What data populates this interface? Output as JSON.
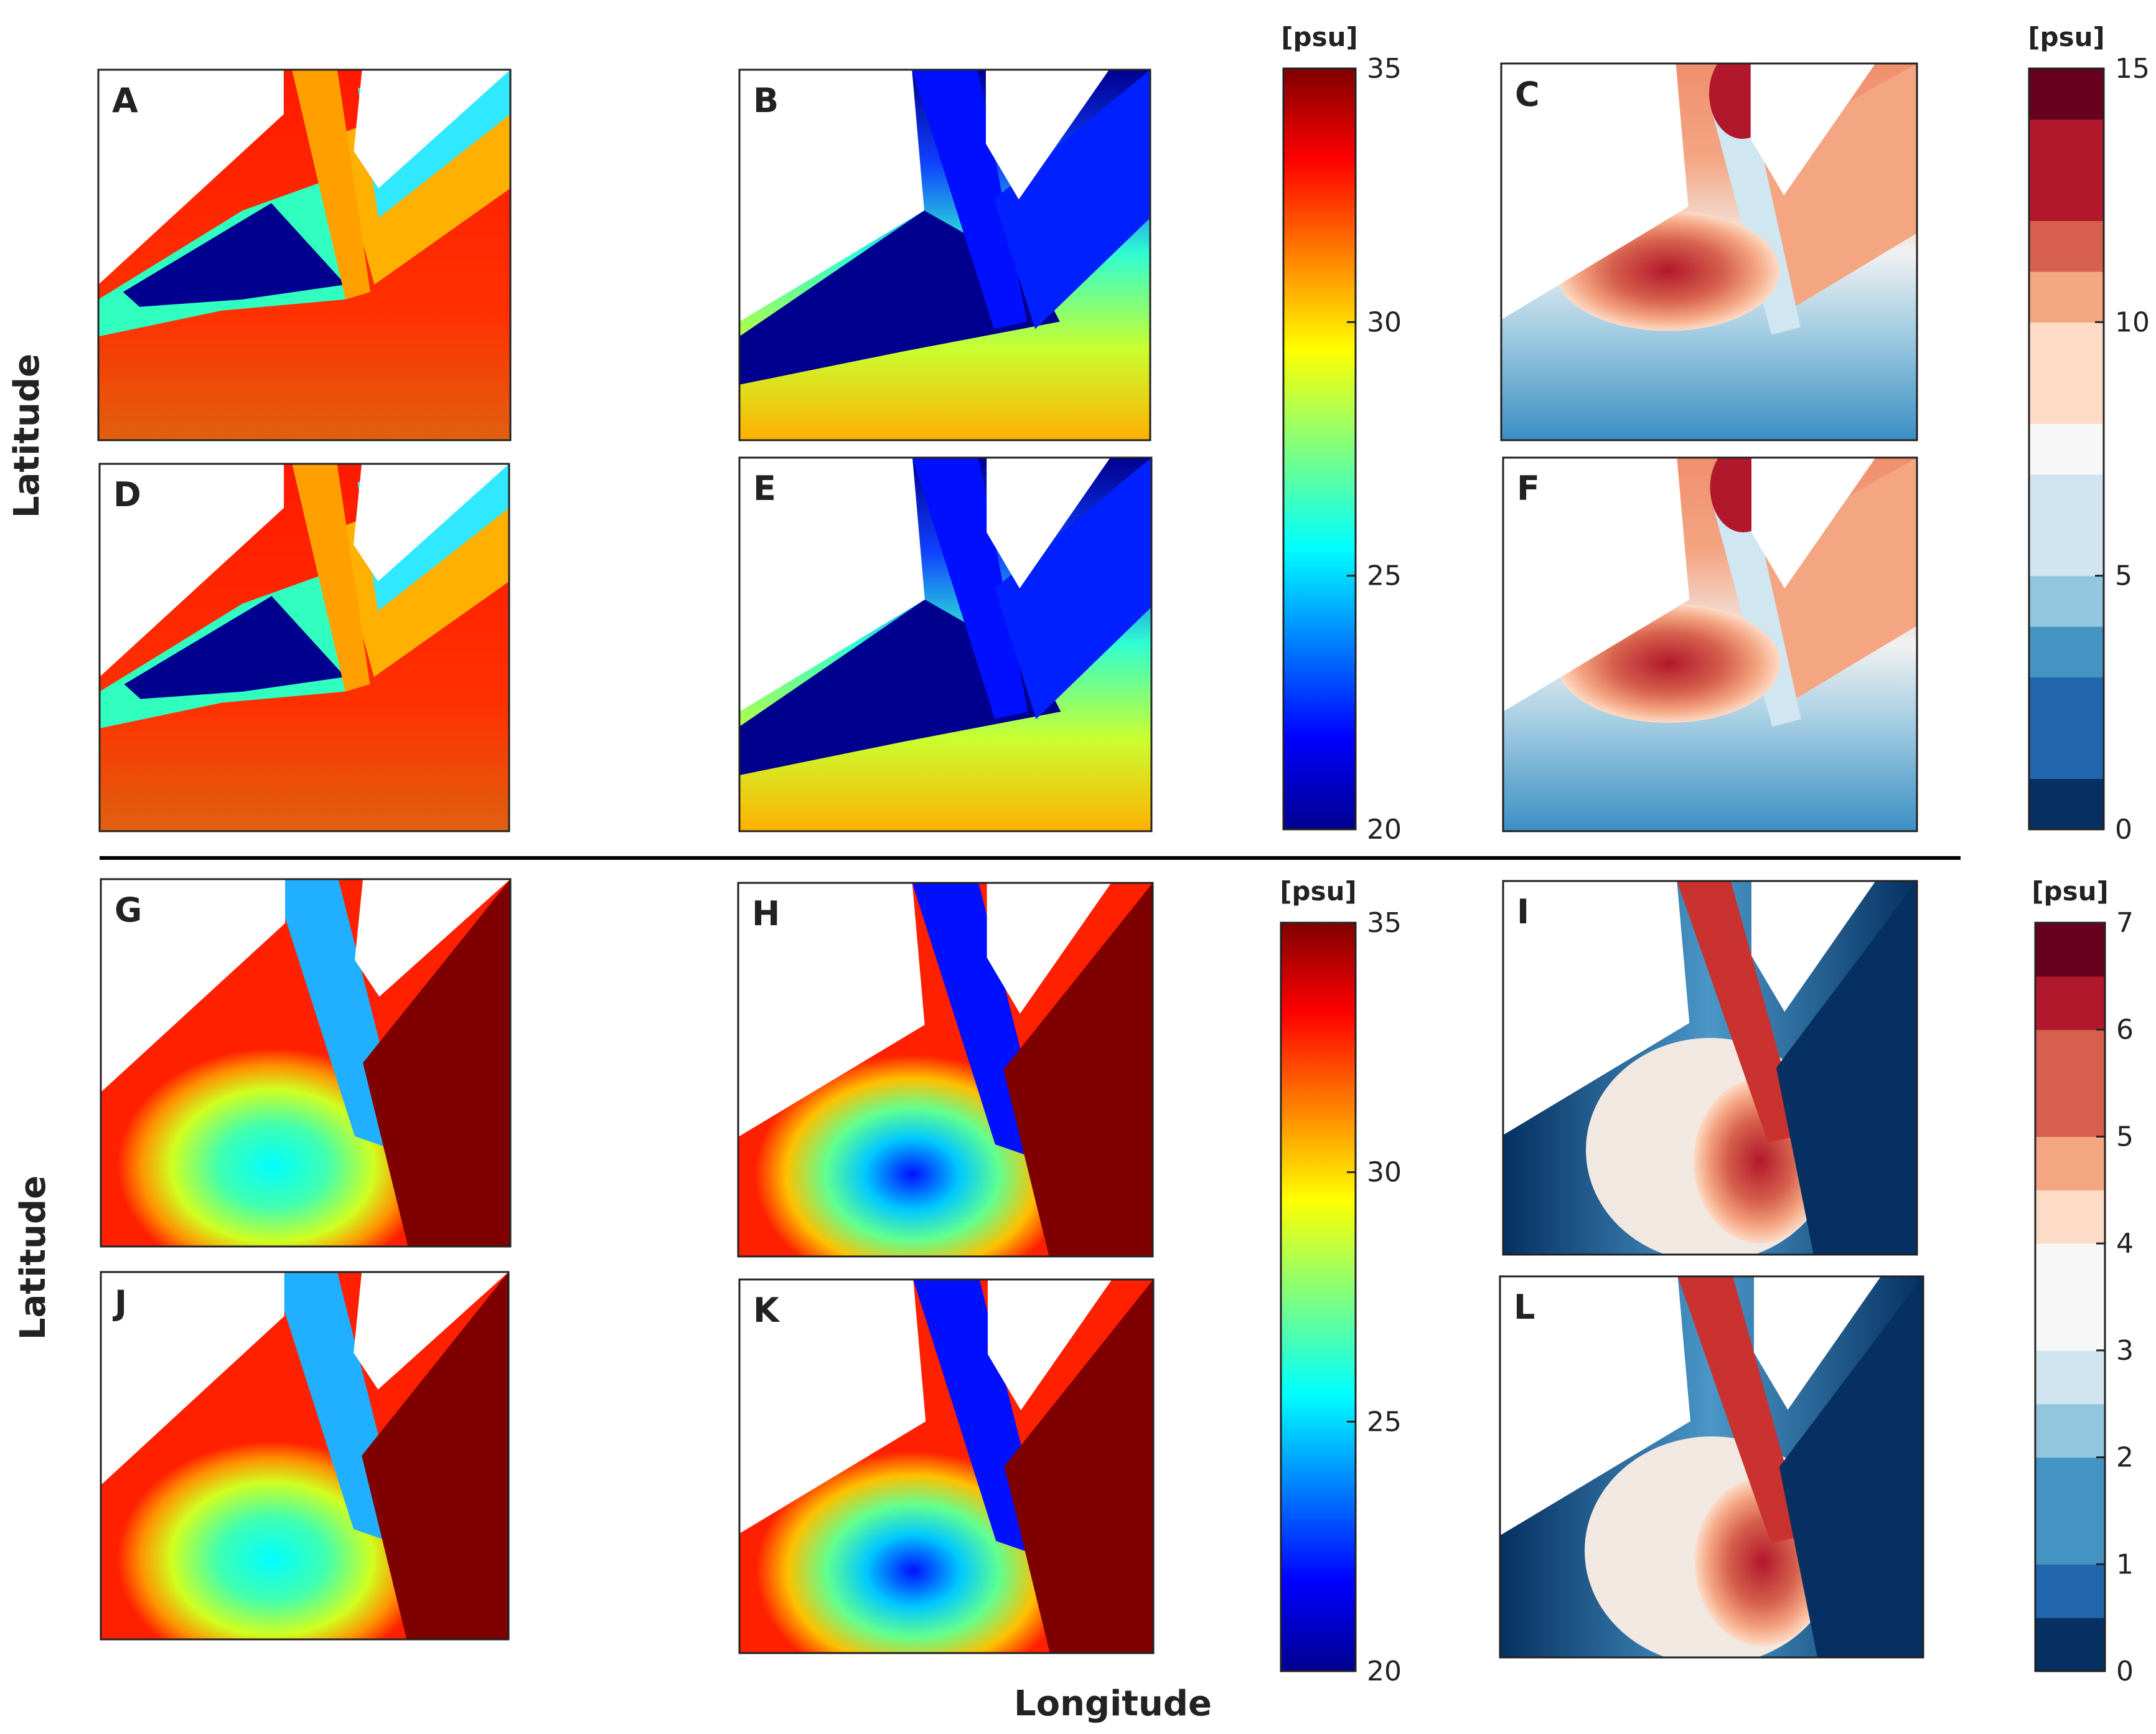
{
  "figure": {
    "ylabel": "Latitude",
    "xlabel": "Longitude",
    "panels": [
      "A",
      "B",
      "C",
      "D",
      "E",
      "F",
      "G",
      "H",
      "I",
      "J",
      "K",
      "L"
    ]
  },
  "colors": {
    "jet": [
      "#00008f",
      "#0000ff",
      "#00ffff",
      "#7fff7f",
      "#ffff00",
      "#ff0000",
      "#7f0000"
    ],
    "rdbu": [
      "#053061",
      "#2166ac",
      "#4393c3",
      "#92c5de",
      "#d1e5f0",
      "#f7f7f7",
      "#fddbc7",
      "#f4a582",
      "#d6604d",
      "#b2182b",
      "#67001f"
    ],
    "land": "#ffffff",
    "divider": "#000000"
  },
  "chart_data": [
    {
      "type": "heatmap",
      "title": "",
      "colorbar": {
        "label": "[psu]",
        "min": 20,
        "max": 35,
        "ticks": [
          "20",
          "25",
          "30",
          "35"
        ],
        "colormap": "jet",
        "orientation": "vertical"
      },
      "panels": [
        "A",
        "B",
        "D",
        "E"
      ],
      "xlabel": "Longitude",
      "ylabel": "Latitude"
    },
    {
      "type": "heatmap",
      "title": "",
      "colorbar": {
        "label": "[psu]",
        "min": 0,
        "max": 15,
        "ticks": [
          "0",
          "5",
          "10",
          "15"
        ],
        "levels": 15,
        "colormap": "RdBu_r",
        "orientation": "vertical"
      },
      "panels": [
        "C",
        "F"
      ]
    },
    {
      "type": "heatmap",
      "title": "",
      "colorbar": {
        "label": "[psu]",
        "min": 20,
        "max": 35,
        "ticks": [
          "20",
          "25",
          "30",
          "35"
        ],
        "colormap": "jet",
        "orientation": "vertical"
      },
      "panels": [
        "G",
        "H",
        "J",
        "K"
      ],
      "xlabel": "Longitude",
      "ylabel": "Latitude"
    },
    {
      "type": "heatmap",
      "title": "",
      "colorbar": {
        "label": "[psu]",
        "min": 0,
        "max": 7,
        "ticks": [
          "0",
          "1",
          "2",
          "3",
          "4",
          "5",
          "6",
          "7"
        ],
        "levels": 14,
        "colormap": "RdBu_r",
        "orientation": "vertical"
      },
      "panels": [
        "I",
        "L"
      ]
    }
  ]
}
